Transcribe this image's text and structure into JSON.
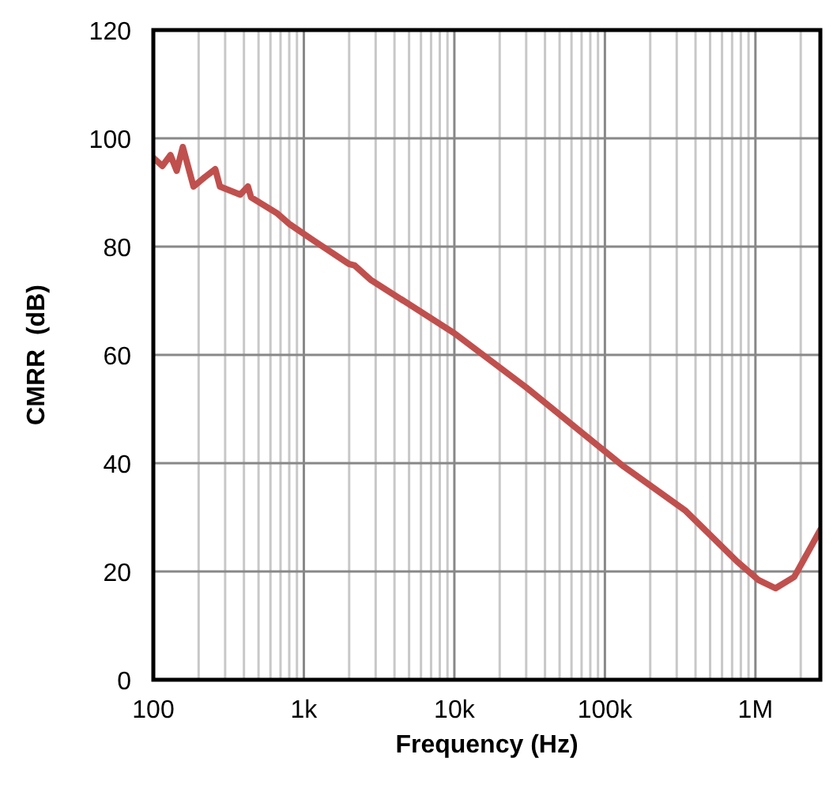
{
  "chart_data": {
    "type": "line",
    "xlabel": "Frequency (Hz)",
    "ylabel": "CMRR  (dB)",
    "log": "x",
    "grid": true,
    "line_style": "solid",
    "xlim": [
      100,
      2700000
    ],
    "xticks": [
      {
        "value": 100,
        "label": "100"
      },
      {
        "value": 1000,
        "label": "1k"
      },
      {
        "value": 10000,
        "label": "10k"
      },
      {
        "value": 100000,
        "label": "100k"
      },
      {
        "value": 1000000,
        "label": "1M"
      }
    ],
    "ylim": [
      0,
      120
    ],
    "yticks": [
      0,
      20,
      40,
      60,
      80,
      100,
      120
    ],
    "x": [
      100,
      115,
      130,
      143,
      157,
      185,
      219,
      258,
      277,
      378,
      425,
      446,
      668,
      808,
      1150,
      1990,
      2180,
      2770,
      10000,
      30000,
      133000,
      344000,
      752000,
      1050000,
      1360000,
      1810000,
      2700000
    ],
    "series": [
      {
        "color": "#c0504d",
        "values": [
          96.4,
          94.9,
          96.9,
          94,
          98.4,
          91.1,
          92.8,
          94.3,
          91.1,
          89.6,
          91.1,
          89.1,
          86.1,
          84.1,
          81.2,
          76.8,
          76.5,
          73.9,
          64,
          54,
          39.4,
          31.2,
          21.9,
          18.4,
          16.9,
          19,
          27.7
        ]
      }
    ]
  }
}
